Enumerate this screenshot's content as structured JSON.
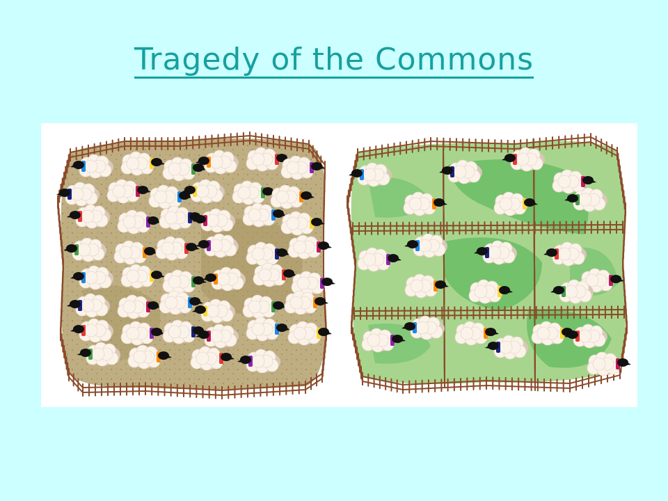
{
  "slide": {
    "title": "Tragedy of the Commons"
  },
  "illustration": {
    "left_pasture": {
      "ground_color": "#bfae82",
      "sheep_count": 46
    },
    "right_pasture": {
      "ground_color": "#a8d58e",
      "sheep_count": 22,
      "paddocks": 9
    },
    "fence_color": "#8a4b2a",
    "sheep_band_colors": [
      "#1e88e5",
      "#fdd835",
      "#43a047",
      "#fb8c00",
      "#e53935",
      "#8e24aa",
      "#1a237e",
      "#c2185b"
    ]
  }
}
